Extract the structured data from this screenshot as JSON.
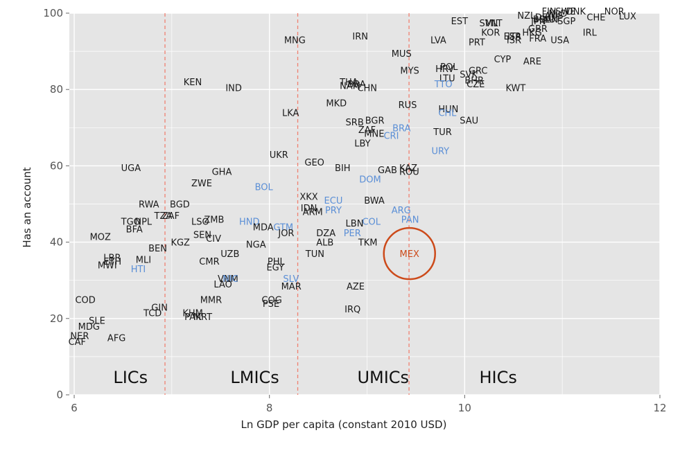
{
  "chart_data": {
    "type": "scatter",
    "title": "",
    "xlabel": "Ln GDP per capita (constant 2010 USD)",
    "ylabel": "Has an account",
    "xlim": [
      5.95,
      12
    ],
    "ylim": [
      0,
      100
    ],
    "xticks": [
      6,
      8,
      10,
      12
    ],
    "yticks": [
      0,
      20,
      40,
      60,
      80,
      100
    ],
    "grid": true,
    "background": "#e5e5e5",
    "colors": {
      "default": "#1a1a1a",
      "highlight": "#5b8fd6",
      "focus": "#cc4a1a",
      "divider": "#f08070"
    },
    "income_thresholds": [
      6.93,
      8.29,
      9.43
    ],
    "regions": [
      {
        "label": "LICs",
        "x": 6.4
      },
      {
        "label": "LMICs",
        "x": 7.6
      },
      {
        "label": "UMICs",
        "x": 8.9
      },
      {
        "label": "HICs",
        "x": 10.15
      }
    ],
    "focus_country": {
      "label": "MEX",
      "x": 9.25,
      "y": 37
    },
    "points": [
      {
        "label": "NOR",
        "x": 11.43,
        "y": 100.5
      },
      {
        "label": "LUX",
        "x": 11.58,
        "y": 99.3
      },
      {
        "label": "CHE",
        "x": 11.25,
        "y": 99
      },
      {
        "label": "IRL",
        "x": 11.21,
        "y": 95
      },
      {
        "label": "DNK",
        "x": 11.04,
        "y": 100.5
      },
      {
        "label": "SWE",
        "x": 10.93,
        "y": 100.5
      },
      {
        "label": "FIN",
        "x": 10.79,
        "y": 100.5
      },
      {
        "label": "NLD",
        "x": 10.86,
        "y": 100
      },
      {
        "label": "AUS",
        "x": 10.82,
        "y": 99.5
      },
      {
        "label": "DEU",
        "x": 10.72,
        "y": 99
      },
      {
        "label": "CAN",
        "x": 10.76,
        "y": 98.5
      },
      {
        "label": "BEL",
        "x": 10.7,
        "y": 98.5
      },
      {
        "label": "AUT",
        "x": 10.8,
        "y": 98.5
      },
      {
        "label": "NZL",
        "x": 10.54,
        "y": 99.5
      },
      {
        "label": "SGP",
        "x": 10.95,
        "y": 98
      },
      {
        "label": "JPN",
        "x": 10.68,
        "y": 98
      },
      {
        "label": "GBR",
        "x": 10.65,
        "y": 96
      },
      {
        "label": "HKG",
        "x": 10.59,
        "y": 95
      },
      {
        "label": "FRA",
        "x": 10.66,
        "y": 93.5
      },
      {
        "label": "USA",
        "x": 10.88,
        "y": 93
      },
      {
        "label": "ISR",
        "x": 10.43,
        "y": 93
      },
      {
        "label": "ESP",
        "x": 10.4,
        "y": 94
      },
      {
        "label": "ITA",
        "x": 10.44,
        "y": 94
      },
      {
        "label": "KOR",
        "x": 10.17,
        "y": 95
      },
      {
        "label": "SVN",
        "x": 10.15,
        "y": 97.5
      },
      {
        "label": "MLT",
        "x": 10.21,
        "y": 97.5
      },
      {
        "label": "EST",
        "x": 9.86,
        "y": 98
      },
      {
        "label": "PRT",
        "x": 10.04,
        "y": 92.5
      },
      {
        "label": "LVA",
        "x": 9.65,
        "y": 93
      },
      {
        "label": "CYP",
        "x": 10.3,
        "y": 88
      },
      {
        "label": "ARE",
        "x": 10.6,
        "y": 87.5
      },
      {
        "label": "MUS",
        "x": 9.25,
        "y": 89.5
      },
      {
        "label": "MYS",
        "x": 9.34,
        "y": 85
      },
      {
        "label": "POL",
        "x": 9.75,
        "y": 86
      },
      {
        "label": "HRV",
        "x": 9.7,
        "y": 85.5
      },
      {
        "label": "SVK",
        "x": 9.95,
        "y": 84
      },
      {
        "label": "GRC",
        "x": 10.04,
        "y": 85
      },
      {
        "label": "LTU",
        "x": 9.74,
        "y": 83
      },
      {
        "label": "BHR",
        "x": 10.0,
        "y": 82.5
      },
      {
        "label": "CZE",
        "x": 10.02,
        "y": 81.5
      },
      {
        "label": "TTO",
        "x": 9.69,
        "y": 81.5,
        "hl": true
      },
      {
        "label": "KWT",
        "x": 10.42,
        "y": 80.5
      },
      {
        "label": "MNG",
        "x": 8.15,
        "y": 93
      },
      {
        "label": "IRN",
        "x": 8.85,
        "y": 94
      },
      {
        "label": "KEN",
        "x": 7.12,
        "y": 82
      },
      {
        "label": "IND",
        "x": 7.55,
        "y": 80.5
      },
      {
        "label": "THA",
        "x": 8.72,
        "y": 82
      },
      {
        "label": "NAM",
        "x": 8.72,
        "y": 81
      },
      {
        "label": "BRA",
        "x": 8.8,
        "y": 81.5
      },
      {
        "label": "CHN",
        "x": 8.9,
        "y": 80.5
      },
      {
        "label": "MKD",
        "x": 8.58,
        "y": 76.5
      },
      {
        "label": "RUS",
        "x": 9.32,
        "y": 76
      },
      {
        "label": "HUN",
        "x": 9.73,
        "y": 75
      },
      {
        "label": "CHL",
        "x": 9.73,
        "y": 74,
        "hl": true
      },
      {
        "label": "LKA",
        "x": 8.13,
        "y": 74
      },
      {
        "label": "SAU",
        "x": 9.95,
        "y": 72
      },
      {
        "label": "SRB",
        "x": 8.78,
        "y": 71.5
      },
      {
        "label": "BGR",
        "x": 8.98,
        "y": 72
      },
      {
        "label": "BRA",
        "x": 9.26,
        "y": 70,
        "hl": true
      },
      {
        "label": "ZAF",
        "x": 8.91,
        "y": 69.5
      },
      {
        "label": "MNE",
        "x": 8.97,
        "y": 68.5
      },
      {
        "label": "CRI",
        "x": 9.17,
        "y": 68,
        "hl": true
      },
      {
        "label": "TUR",
        "x": 9.68,
        "y": 69
      },
      {
        "label": "LBY",
        "x": 8.87,
        "y": 66
      },
      {
        "label": "URY",
        "x": 9.66,
        "y": 64,
        "hl": true
      },
      {
        "label": "UKR",
        "x": 8.0,
        "y": 63
      },
      {
        "label": "GEO",
        "x": 8.36,
        "y": 61
      },
      {
        "label": "UGA",
        "x": 6.48,
        "y": 59.5
      },
      {
        "label": "GHA",
        "x": 7.41,
        "y": 58.5
      },
      {
        "label": "BIH",
        "x": 8.67,
        "y": 59.5
      },
      {
        "label": "GAB",
        "x": 9.11,
        "y": 59
      },
      {
        "label": "KAZ",
        "x": 9.33,
        "y": 59.5
      },
      {
        "label": "ROU",
        "x": 9.33,
        "y": 58.5
      },
      {
        "label": "ZWE",
        "x": 7.2,
        "y": 55.5
      },
      {
        "label": "DOM",
        "x": 8.92,
        "y": 56.5,
        "hl": true
      },
      {
        "label": "BOL",
        "x": 7.85,
        "y": 54.5,
        "hl": true
      },
      {
        "label": "XKX",
        "x": 8.31,
        "y": 52
      },
      {
        "label": "ECU",
        "x": 8.56,
        "y": 51,
        "hl": true
      },
      {
        "label": "BWA",
        "x": 8.97,
        "y": 51
      },
      {
        "label": "RWA",
        "x": 6.66,
        "y": 50
      },
      {
        "label": "BGD",
        "x": 6.98,
        "y": 50
      },
      {
        "label": "IDN",
        "x": 8.32,
        "y": 49
      },
      {
        "label": "PRY",
        "x": 8.57,
        "y": 48.5,
        "hl": true
      },
      {
        "label": "ARM",
        "x": 8.34,
        "y": 48
      },
      {
        "label": "ARG",
        "x": 9.25,
        "y": 48.5,
        "hl": true
      },
      {
        "label": "TZA",
        "x": 6.82,
        "y": 47
      },
      {
        "label": "ZAF",
        "x": 6.9,
        "y": 47
      },
      {
        "label": "PAN",
        "x": 9.35,
        "y": 46,
        "hl": true
      },
      {
        "label": "ZMB",
        "x": 7.33,
        "y": 46
      },
      {
        "label": "TGO",
        "x": 6.48,
        "y": 45.5
      },
      {
        "label": "NPL",
        "x": 6.62,
        "y": 45.5
      },
      {
        "label": "LSO",
        "x": 7.2,
        "y": 45.5
      },
      {
        "label": "HND",
        "x": 7.69,
        "y": 45.5,
        "hl": true
      },
      {
        "label": "COL",
        "x": 8.95,
        "y": 45.5,
        "hl": true
      },
      {
        "label": "LBN",
        "x": 8.78,
        "y": 45
      },
      {
        "label": "MDA",
        "x": 7.83,
        "y": 44
      },
      {
        "label": "GTM",
        "x": 8.04,
        "y": 44,
        "hl": true
      },
      {
        "label": "BFA",
        "x": 6.53,
        "y": 43.5
      },
      {
        "label": "JOR",
        "x": 8.09,
        "y": 42.5
      },
      {
        "label": "DZA",
        "x": 8.48,
        "y": 42.5
      },
      {
        "label": "PER",
        "x": 8.76,
        "y": 42.5,
        "hl": true
      },
      {
        "label": "SEN",
        "x": 7.22,
        "y": 42
      },
      {
        "label": "CIV",
        "x": 7.35,
        "y": 41
      },
      {
        "label": "MOZ",
        "x": 6.16,
        "y": 41.5
      },
      {
        "label": "TKM",
        "x": 8.91,
        "y": 40
      },
      {
        "label": "ALB",
        "x": 8.48,
        "y": 40
      },
      {
        "label": "KGZ",
        "x": 6.99,
        "y": 40
      },
      {
        "label": "NGA",
        "x": 7.76,
        "y": 39.5
      },
      {
        "label": "BEN",
        "x": 6.76,
        "y": 38.5
      },
      {
        "label": "UZB",
        "x": 7.5,
        "y": 37
      },
      {
        "label": "TUN",
        "x": 8.37,
        "y": 37
      },
      {
        "label": "LBR",
        "x": 6.3,
        "y": 36
      },
      {
        "label": "MLI",
        "x": 6.63,
        "y": 35.5
      },
      {
        "label": "ETH",
        "x": 6.3,
        "y": 35
      },
      {
        "label": "MWI",
        "x": 6.24,
        "y": 34
      },
      {
        "label": "CMR",
        "x": 7.28,
        "y": 35
      },
      {
        "label": "PHL",
        "x": 7.98,
        "y": 35
      },
      {
        "label": "EGY",
        "x": 7.97,
        "y": 33.5
      },
      {
        "label": "HTI",
        "x": 6.58,
        "y": 33,
        "hl": true
      },
      {
        "label": "VNM",
        "x": 7.47,
        "y": 30.5
      },
      {
        "label": "NIC",
        "x": 7.52,
        "y": 30.5,
        "hl": true
      },
      {
        "label": "SLV",
        "x": 8.14,
        "y": 30.5,
        "hl": true
      },
      {
        "label": "LAO",
        "x": 7.43,
        "y": 29
      },
      {
        "label": "MAR",
        "x": 8.12,
        "y": 28.5
      },
      {
        "label": "AZE",
        "x": 8.79,
        "y": 28.5
      },
      {
        "label": "COD",
        "x": 6.01,
        "y": 25
      },
      {
        "label": "MMR",
        "x": 7.29,
        "y": 25
      },
      {
        "label": "COG",
        "x": 7.92,
        "y": 25
      },
      {
        "label": "PSE",
        "x": 7.93,
        "y": 24
      },
      {
        "label": "GIN",
        "x": 6.79,
        "y": 23
      },
      {
        "label": "IRQ",
        "x": 8.77,
        "y": 22.5
      },
      {
        "label": "TCD",
        "x": 6.71,
        "y": 21.5
      },
      {
        "label": "KHM",
        "x": 7.11,
        "y": 21.5
      },
      {
        "label": "PAK",
        "x": 7.13,
        "y": 20.5
      },
      {
        "label": "MRT",
        "x": 7.22,
        "y": 20.5
      },
      {
        "label": "SLE",
        "x": 6.15,
        "y": 19.5
      },
      {
        "label": "MDG",
        "x": 6.04,
        "y": 18
      },
      {
        "label": "NER",
        "x": 5.96,
        "y": 15.5
      },
      {
        "label": "AFG",
        "x": 6.34,
        "y": 15
      },
      {
        "label": "CAF",
        "x": 5.94,
        "y": 14
      }
    ]
  }
}
